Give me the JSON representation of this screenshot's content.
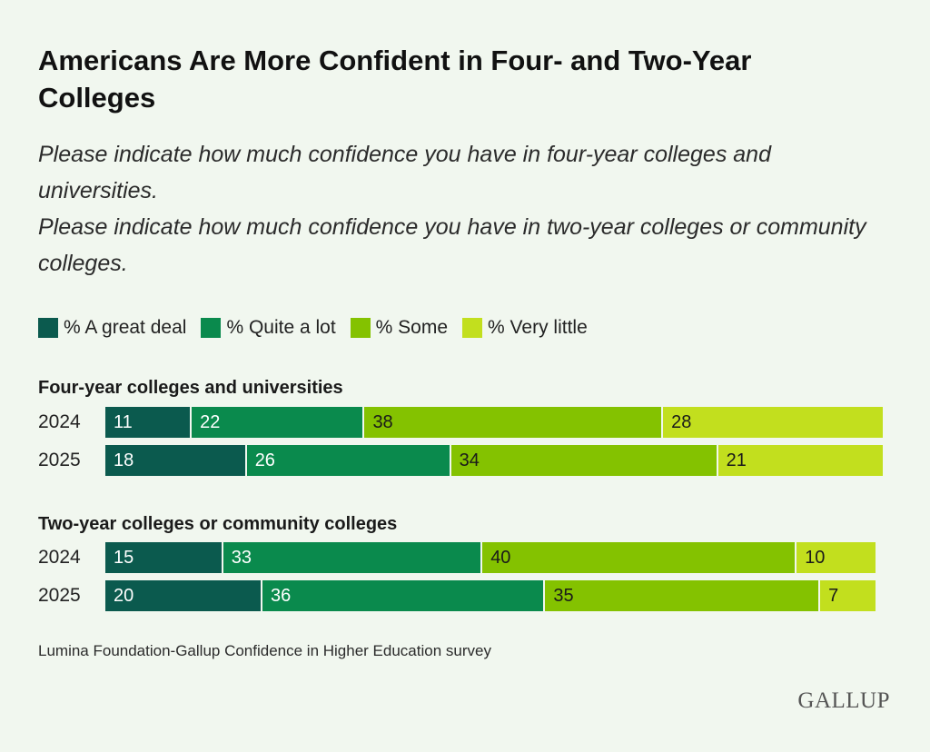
{
  "chart_data": {
    "type": "bar",
    "orientation": "horizontal",
    "stacked": true,
    "title": "Americans Are More Confident in Four- and Two-Year Colleges",
    "subtitle": [
      "Please indicate how much confidence you have in four-year colleges and universities.",
      "Please indicate how much confidence you have in two-year colleges or community colleges."
    ],
    "legend": {
      "placement": "top-left",
      "entries": [
        {
          "name": "% A great deal",
          "color": "#0b5a4e"
        },
        {
          "name": "% Quite a lot",
          "color": "#0a8a4d"
        },
        {
          "name": "% Some",
          "color": "#84c200"
        },
        {
          "name": "% Very little",
          "color": "#c2df1e"
        }
      ]
    },
    "xlim": [
      0,
      100
    ],
    "groups": [
      {
        "label": "Four-year colleges and universities",
        "rows": [
          {
            "year": "2024",
            "values": [
              11,
              22,
              38,
              28
            ]
          },
          {
            "year": "2025",
            "values": [
              18,
              26,
              34,
              21
            ]
          }
        ]
      },
      {
        "label": "Two-year colleges or community colleges",
        "rows": [
          {
            "year": "2024",
            "values": [
              15,
              33,
              40,
              10
            ]
          },
          {
            "year": "2025",
            "values": [
              20,
              36,
              35,
              7
            ]
          }
        ]
      }
    ],
    "label_colors": [
      "#ffffff",
      "#ffffff",
      "#1a1a1a",
      "#1a1a1a"
    ]
  },
  "source": "Lumina Foundation-Gallup Confidence in Higher Education survey",
  "logo": "GALLUP"
}
